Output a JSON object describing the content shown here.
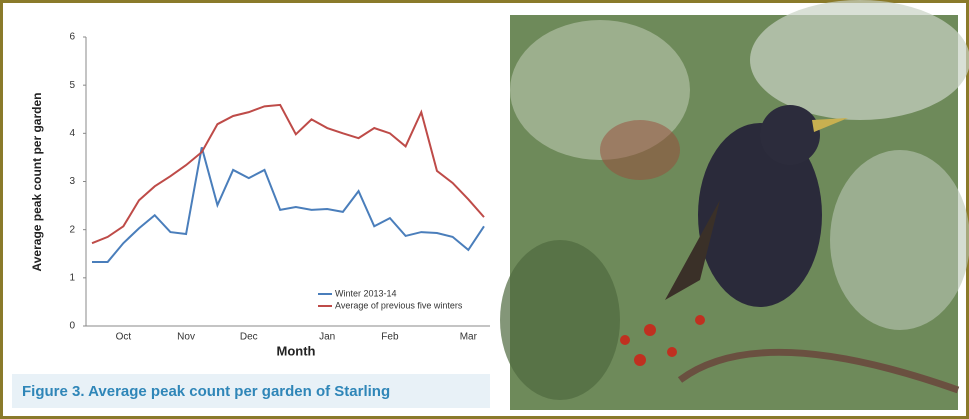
{
  "chart_data": {
    "type": "line",
    "categories": [
      null,
      null,
      "Oct",
      null,
      null,
      null,
      "Nov",
      null,
      null,
      null,
      "Dec",
      null,
      null,
      null,
      null,
      "Jan",
      null,
      null,
      null,
      "Feb",
      null,
      null,
      null,
      null,
      "Mar",
      null
    ],
    "series": [
      {
        "name": "Winter 2013-14",
        "color": "#4a7ebb",
        "values": [
          1.33,
          1.33,
          1.72,
          2.03,
          2.3,
          1.95,
          1.91,
          3.71,
          2.51,
          3.24,
          3.07,
          3.24,
          2.41,
          2.47,
          2.41,
          2.43,
          2.37,
          2.8,
          2.07,
          2.24,
          1.87,
          1.95,
          1.93,
          1.85,
          1.58,
          2.07
        ]
      },
      {
        "name": "Average of previous five winters",
        "color": "#be4b48",
        "values": [
          1.72,
          1.85,
          2.07,
          2.61,
          2.9,
          3.11,
          3.34,
          3.61,
          4.19,
          4.36,
          4.44,
          4.56,
          4.59,
          3.98,
          4.29,
          4.11,
          4.0,
          3.9,
          4.11,
          4.0,
          3.73,
          4.44,
          3.22,
          2.97,
          2.63,
          2.26
        ]
      }
    ],
    "xlabel": "Month",
    "ylabel": "Average peak count per garden",
    "ylim": [
      0,
      6
    ],
    "yticks": [
      0,
      1,
      2,
      3,
      4,
      5,
      6
    ],
    "grid": false,
    "legend": "lower right"
  },
  "caption": "Figure 3. Average peak count per garden of Starling"
}
